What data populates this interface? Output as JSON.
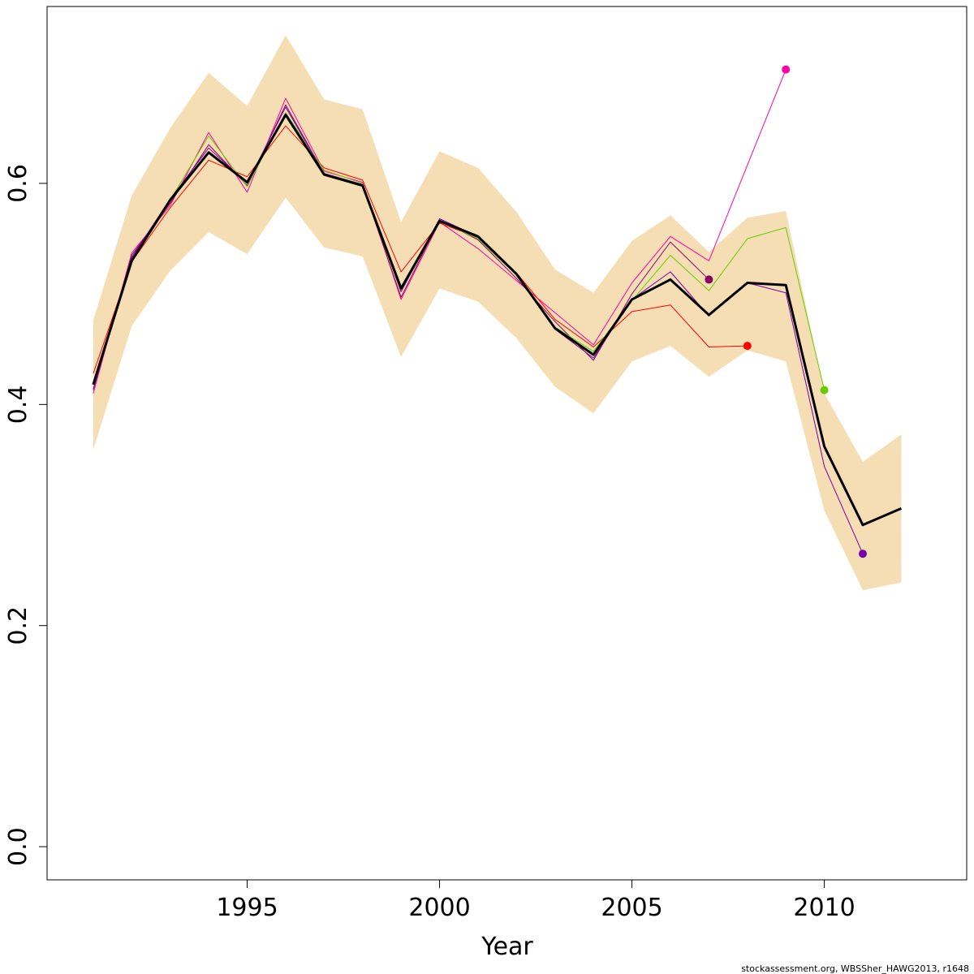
{
  "chart_data": {
    "type": "line",
    "title": "",
    "xlabel": "Year",
    "ylabel": "",
    "xlim": [
      1989.8,
      2013.7
    ],
    "ylim": [
      -0.03,
      0.76
    ],
    "x_ticks": [
      1995,
      2000,
      2005,
      2010
    ],
    "x_tick_labels": [
      "1995",
      "2000",
      "2005",
      "2010"
    ],
    "y_ticks": [
      0.0,
      0.2,
      0.4,
      0.6
    ],
    "y_tick_labels": [
      "0.0",
      "0.2",
      "0.4",
      "0.6"
    ],
    "grid": false,
    "legend": "none",
    "credit": "stockassessment.org, WBSSher_HAWG2013, r1648",
    "band": {
      "color": "#f5deb3",
      "x": [
        1991,
        1992,
        1993,
        1994,
        1995,
        1996,
        1997,
        1998,
        1999,
        2000,
        2001,
        2002,
        2003,
        2004,
        2005,
        2006,
        2007,
        2008,
        2009,
        2010,
        2011,
        2012
      ],
      "lower": [
        0.359,
        0.471,
        0.521,
        0.556,
        0.536,
        0.587,
        0.542,
        0.534,
        0.443,
        0.505,
        0.493,
        0.46,
        0.416,
        0.392,
        0.439,
        0.453,
        0.425,
        0.449,
        0.439,
        0.304,
        0.232,
        0.239
      ],
      "upper": [
        0.476,
        0.589,
        0.65,
        0.7,
        0.67,
        0.734,
        0.676,
        0.667,
        0.565,
        0.629,
        0.614,
        0.574,
        0.522,
        0.501,
        0.548,
        0.571,
        0.538,
        0.569,
        0.575,
        0.41,
        0.348,
        0.373
      ]
    },
    "series": [
      {
        "color": "#ff00aa",
        "width": 1,
        "x": [
          1991,
          1992,
          1993,
          1994,
          1995,
          1996,
          1997,
          1998,
          1999,
          2000,
          2001,
          2002,
          2003,
          2004,
          2005,
          2006,
          2007,
          2009
        ],
        "values": [
          0.41,
          0.537,
          0.58,
          0.646,
          0.592,
          0.677,
          0.611,
          0.601,
          0.495,
          0.565,
          0.541,
          0.512,
          0.483,
          0.454,
          0.51,
          0.552,
          0.53,
          0.703
        ],
        "end_marker": true
      },
      {
        "color": "#880066",
        "width": 1,
        "x": [
          1991,
          1992,
          1993,
          1994,
          1995,
          1996,
          1997,
          1998,
          1999,
          2000,
          2001,
          2002,
          2003,
          2004,
          2005,
          2006,
          2007
        ],
        "values": [
          0.413,
          0.535,
          0.582,
          0.635,
          0.598,
          0.671,
          0.609,
          0.598,
          0.497,
          0.567,
          0.549,
          0.514,
          0.475,
          0.44,
          0.5,
          0.547,
          0.513
        ],
        "end_marker": true
      },
      {
        "color": "#ff0000",
        "width": 1,
        "x": [
          1991,
          1992,
          1993,
          1994,
          1995,
          1996,
          1997,
          1998,
          1999,
          2000,
          2001,
          2002,
          2003,
          2004,
          2005,
          2006,
          2007,
          2008
        ],
        "values": [
          0.428,
          0.529,
          0.578,
          0.621,
          0.606,
          0.652,
          0.614,
          0.603,
          0.52,
          0.564,
          0.551,
          0.519,
          0.477,
          0.452,
          0.484,
          0.49,
          0.452,
          0.453
        ],
        "end_marker": true
      },
      {
        "color": "#66cc00",
        "width": 1,
        "x": [
          1991,
          1992,
          1993,
          1994,
          1995,
          1996,
          1997,
          1998,
          1999,
          2000,
          2001,
          2002,
          2003,
          2004,
          2005,
          2006,
          2007,
          2008,
          2009,
          2010
        ],
        "values": [
          0.42,
          0.531,
          0.585,
          0.643,
          0.597,
          0.664,
          0.612,
          0.6,
          0.502,
          0.566,
          0.55,
          0.517,
          0.47,
          0.448,
          0.494,
          0.535,
          0.503,
          0.55,
          0.56,
          0.413
        ],
        "end_marker": true
      },
      {
        "color": "#7700aa",
        "width": 1,
        "x": [
          1991,
          1992,
          1993,
          1994,
          1995,
          1996,
          1997,
          1998,
          1999,
          2000,
          2001,
          2002,
          2003,
          2004,
          2005,
          2006,
          2007,
          2008,
          2009,
          2010,
          2011
        ],
        "values": [
          0.414,
          0.533,
          0.586,
          0.632,
          0.6,
          0.669,
          0.609,
          0.599,
          0.502,
          0.568,
          0.552,
          0.518,
          0.468,
          0.442,
          0.495,
          0.52,
          0.48,
          0.51,
          0.501,
          0.344,
          0.265
        ],
        "end_marker": true
      },
      {
        "color": "#000000",
        "width": 3,
        "x": [
          1991,
          1992,
          1993,
          1994,
          1995,
          1996,
          1997,
          1998,
          1999,
          2000,
          2001,
          2002,
          2003,
          2004,
          2005,
          2006,
          2007,
          2008,
          2009,
          2010,
          2011,
          2012
        ],
        "values": [
          0.418,
          0.53,
          0.585,
          0.628,
          0.601,
          0.662,
          0.608,
          0.598,
          0.505,
          0.566,
          0.552,
          0.518,
          0.469,
          0.445,
          0.495,
          0.513,
          0.481,
          0.51,
          0.508,
          0.362,
          0.291,
          0.306
        ],
        "end_marker": false
      }
    ]
  }
}
